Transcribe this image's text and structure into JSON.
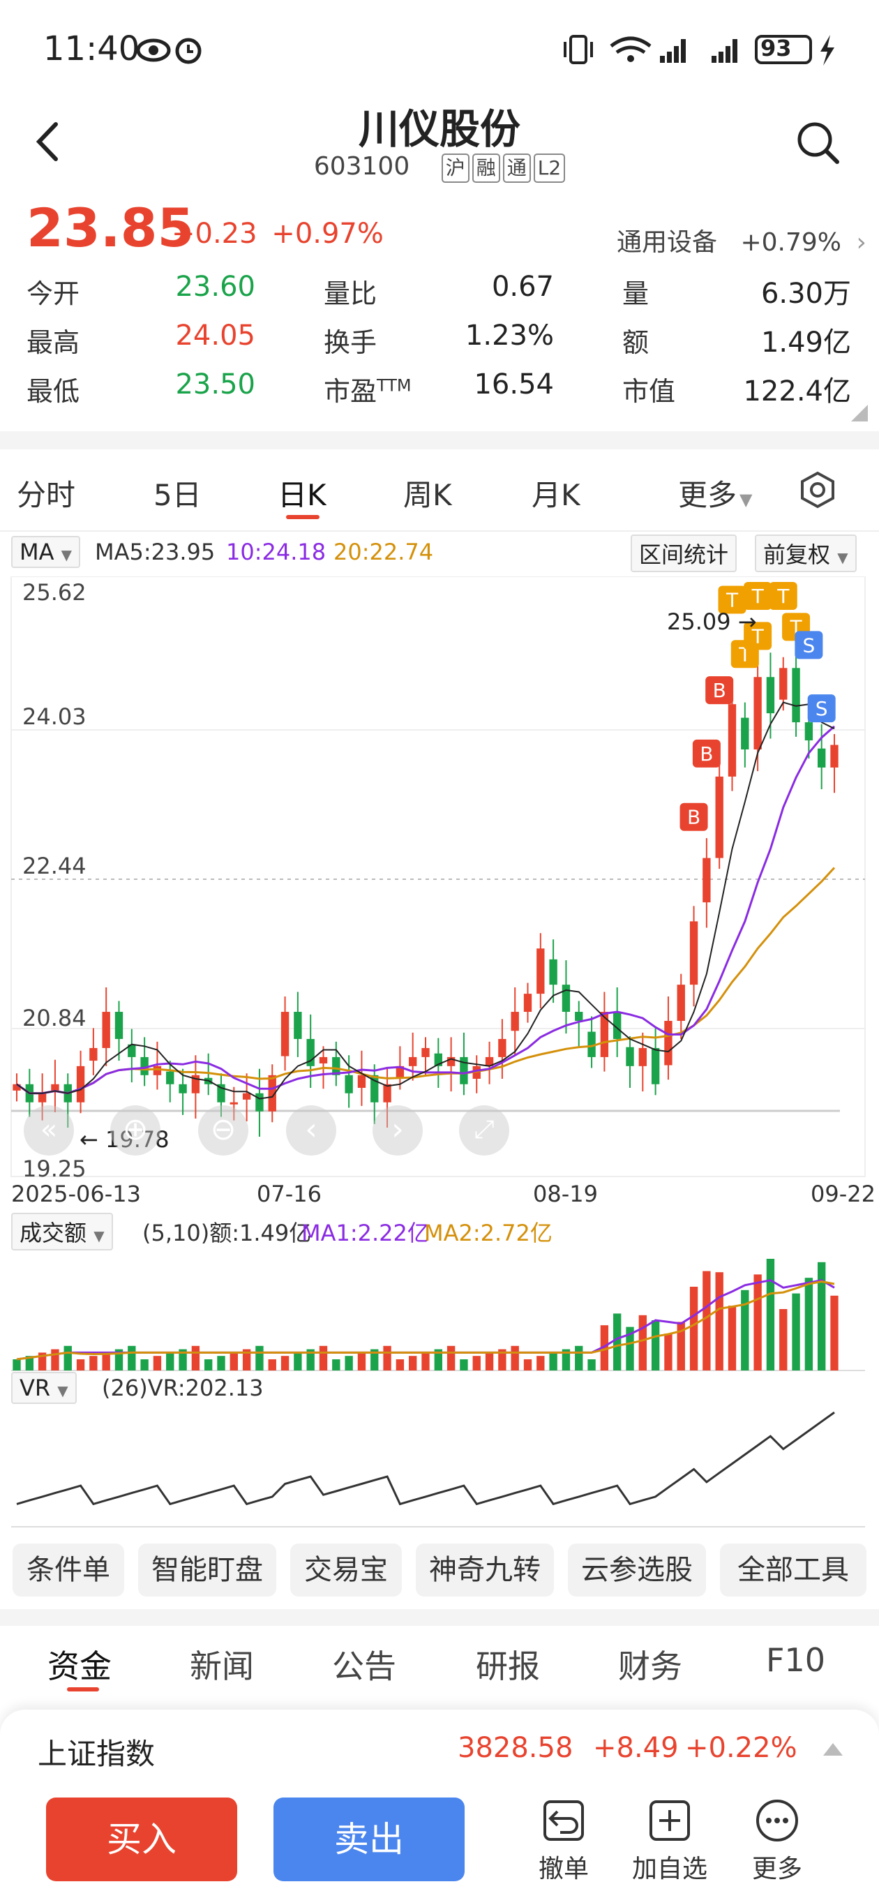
{
  "status": {
    "time": "11:40",
    "battery": "93"
  },
  "header": {
    "title": "川仪股份",
    "code": "603100",
    "tags": [
      "沪",
      "融",
      "通",
      "L2"
    ]
  },
  "quote": {
    "price": "23.85",
    "change_abs": "+0.23",
    "change_pct": "+0.97%",
    "sector_name": "通用设备",
    "sector_change": "+0.79%",
    "stats": [
      [
        {
          "label": "今开",
          "value": "23.60",
          "color": "green"
        },
        {
          "label": "量比",
          "value": "0.67",
          "color": "black"
        },
        {
          "label": "量",
          "value": "6.30万",
          "color": "black"
        }
      ],
      [
        {
          "label": "最高",
          "value": "24.05",
          "color": "red"
        },
        {
          "label": "换手",
          "value": "1.23%",
          "color": "black"
        },
        {
          "label": "额",
          "value": "1.49亿",
          "color": "black"
        }
      ],
      [
        {
          "label": "最低",
          "value": "23.50",
          "color": "green"
        },
        {
          "label": "市盈",
          "label_sup": "TTM",
          "value": "16.54",
          "color": "black"
        },
        {
          "label": "市值",
          "value": "122.4亿",
          "color": "black"
        }
      ]
    ]
  },
  "period_tabs": [
    "分时",
    "5日",
    "日K",
    "周K",
    "月K",
    "更多"
  ],
  "ma_bar": {
    "selector": "MA",
    "ma5": "MA5:23.95",
    "ma10": "10:24.18",
    "ma20": "20:22.74",
    "interval_btn": "区间统计",
    "adjust_btn": "前复权"
  },
  "price_axis": {
    "labels": [
      "25.62",
      "24.03",
      "22.44",
      "20.84",
      "19.25"
    ],
    "high_marker": "25.09",
    "low_marker": "19.78"
  },
  "date_axis": [
    "2025-06-13",
    "07-16",
    "08-19",
    "09-22"
  ],
  "trade_markers": [
    "B",
    "B",
    "B",
    "T",
    "T",
    "T",
    "T",
    "T",
    "T",
    "S",
    "S"
  ],
  "volume_bar": {
    "selector": "成交额",
    "summary": "(5,10)额:1.49亿",
    "ma1": "MA1:2.22亿",
    "ma2": "MA2:2.72亿"
  },
  "vr_bar": {
    "selector": "VR",
    "summary": "(26)VR:202.13"
  },
  "tools": [
    "条件单",
    "智能盯盘",
    "交易宝",
    "神奇九转",
    "云参选股",
    "全部工具"
  ],
  "info_tabs": [
    "资金",
    "新闻",
    "公告",
    "研报",
    "财务",
    "F10"
  ],
  "index": {
    "name": "上证指数",
    "value": "3828.58",
    "change_abs": "+8.49",
    "change_pct": "+0.22%"
  },
  "actions": {
    "buy": "买入",
    "sell": "卖出",
    "cancel": "撤单",
    "watch": "加自选",
    "more": "更多"
  },
  "colors": {
    "up": "#e8432e",
    "down": "#1aa34a",
    "ma5": "#222222",
    "ma10": "#8a2be2",
    "ma20": "#d4900a",
    "sell": "#4b86ee",
    "t_marker": "#f0a000"
  },
  "chart_data": {
    "type": "candlestick",
    "x_range": [
      "2025-06-13",
      "2025-09-22"
    ],
    "ylim": [
      19.25,
      25.62
    ],
    "period_high": 25.09,
    "period_low": 19.78,
    "last_close": 23.85,
    "ma_last": {
      "MA5": 23.95,
      "MA10": 24.18,
      "MA20": 22.74
    },
    "closes_approx": [
      20.1,
      19.9,
      20.0,
      20.1,
      19.9,
      20.3,
      20.5,
      20.9,
      20.6,
      20.4,
      20.2,
      20.3,
      20.1,
      20.0,
      20.2,
      20.1,
      19.9,
      19.9,
      20.0,
      19.8,
      20.2,
      20.9,
      20.6,
      20.3,
      20.4,
      20.2,
      20.0,
      20.2,
      19.9,
      20.1,
      20.3,
      20.4,
      20.5,
      20.3,
      20.4,
      20.1,
      20.3,
      20.4,
      20.6,
      20.9,
      21.1,
      21.6,
      21.2,
      20.9,
      20.8,
      20.4,
      20.9,
      20.6,
      20.3,
      20.5,
      20.1,
      20.8,
      21.2,
      21.9,
      22.6,
      23.5,
      24.3,
      23.8,
      24.6,
      24.2,
      24.7,
      24.1,
      23.9,
      23.6,
      23.85
    ],
    "volume_last": "1.49亿",
    "volume_ma1": "2.22亿",
    "volume_ma2": "2.72亿",
    "vr_last": 202.13
  }
}
